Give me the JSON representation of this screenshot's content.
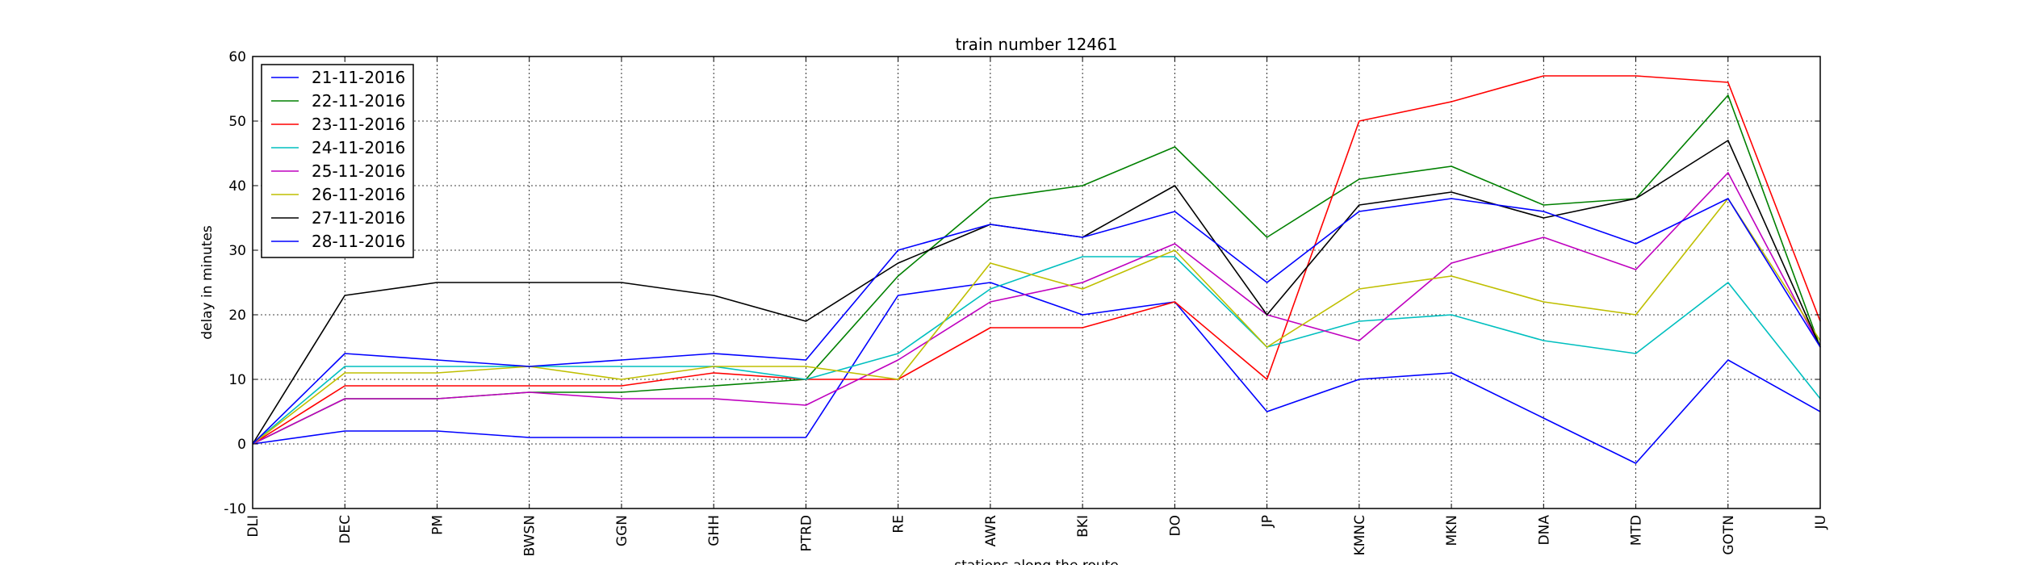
{
  "chart_data": {
    "type": "line",
    "title": "train number 12461",
    "xlabel": "stations along the route",
    "ylabel": "delay in minutes",
    "ylim": [
      -10,
      60
    ],
    "yticks": [
      -10,
      0,
      10,
      20,
      30,
      40,
      50,
      60
    ],
    "grid": true,
    "legend_position": "top-left",
    "categories": [
      "DLI",
      "DEC",
      "PM",
      "BWSN",
      "GGN",
      "GHH",
      "PTRD",
      "RE",
      "AWR",
      "BKI",
      "DO",
      "JP",
      "KMNC",
      "MKN",
      "DNA",
      "MTD",
      "GOTN",
      "JU"
    ],
    "series": [
      {
        "name": "21-11-2016",
        "color": "#0000ff",
        "values": [
          0,
          2,
          2,
          1,
          1,
          1,
          1,
          23,
          25,
          20,
          22,
          5,
          10,
          11,
          4,
          -3,
          13,
          5
        ]
      },
      {
        "name": "22-11-2016",
        "color": "#008000",
        "values": [
          0,
          7,
          7,
          8,
          8,
          9,
          10,
          26,
          38,
          40,
          46,
          32,
          41,
          43,
          37,
          38,
          54,
          15
        ]
      },
      {
        "name": "23-11-2016",
        "color": "#ff0000",
        "values": [
          0,
          9,
          9,
          9,
          9,
          11,
          10,
          10,
          18,
          18,
          22,
          10,
          50,
          53,
          57,
          57,
          56,
          19
        ]
      },
      {
        "name": "24-11-2016",
        "color": "#00bfbf",
        "values": [
          0,
          12,
          12,
          12,
          12,
          12,
          10,
          14,
          24,
          29,
          29,
          15,
          19,
          20,
          16,
          14,
          25,
          7
        ]
      },
      {
        "name": "25-11-2016",
        "color": "#bf00bf",
        "values": [
          0,
          7,
          7,
          8,
          7,
          7,
          6,
          13,
          22,
          25,
          31,
          20,
          16,
          28,
          32,
          27,
          42,
          15
        ]
      },
      {
        "name": "26-11-2016",
        "color": "#bfbf00",
        "values": [
          0,
          11,
          11,
          12,
          10,
          12,
          12,
          10,
          28,
          24,
          30,
          15,
          24,
          26,
          22,
          20,
          38,
          16
        ]
      },
      {
        "name": "27-11-2016",
        "color": "#000000",
        "values": [
          0,
          23,
          25,
          25,
          25,
          23,
          19,
          28,
          34,
          32,
          40,
          20,
          37,
          39,
          35,
          38,
          47,
          15
        ]
      },
      {
        "name": "28-11-2016",
        "color": "#0000ff",
        "values": [
          0,
          14,
          13,
          12,
          13,
          14,
          13,
          30,
          34,
          32,
          36,
          25,
          36,
          38,
          36,
          31,
          38,
          15
        ]
      }
    ]
  }
}
